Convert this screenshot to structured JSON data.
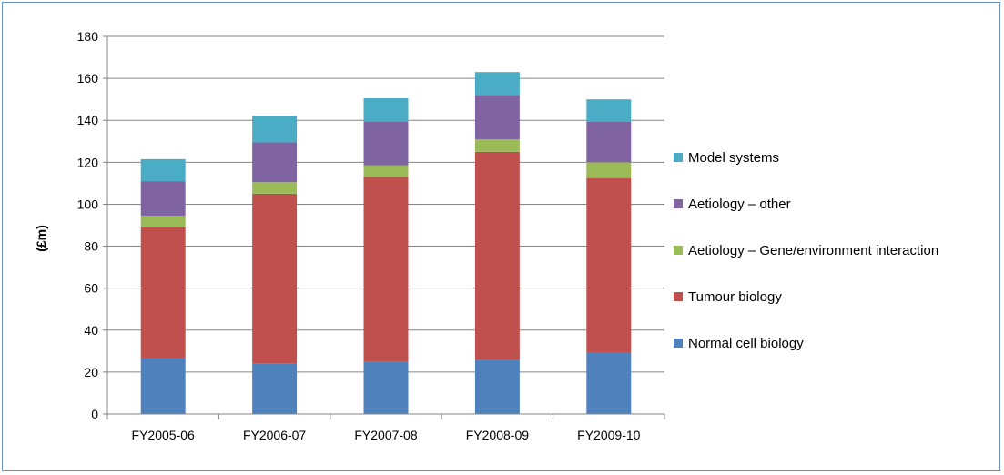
{
  "chart_data": {
    "type": "bar",
    "stacked": true,
    "categories": [
      "FY2005-06",
      "FY2006-07",
      "FY2007-08",
      "FY2008-09",
      "FY2009-10"
    ],
    "series": [
      {
        "name": "Normal cell biology",
        "color": "#4f81bd",
        "values": [
          26.5,
          24,
          25,
          26,
          29.5
        ]
      },
      {
        "name": "Tumour biology",
        "color": "#c0504d",
        "values": [
          62.5,
          81,
          88,
          99,
          83
        ]
      },
      {
        "name": "Aetiology – Gene/environment interaction",
        "color": "#9bbb59",
        "values": [
          5.5,
          5.5,
          5.5,
          6,
          7.5
        ]
      },
      {
        "name": "Aetiology – other",
        "color": "#8064a2",
        "values": [
          16.5,
          19,
          21,
          21,
          19.5
        ]
      },
      {
        "name": "Model systems",
        "color": "#4bacc6",
        "values": [
          10.5,
          12.5,
          11,
          11,
          10.5
        ]
      }
    ],
    "ylabel": "(£m)",
    "xlabel": "",
    "ylim": [
      0,
      180
    ],
    "yticks": [
      "0",
      "20",
      "40",
      "60",
      "80",
      "100",
      "120",
      "140",
      "160",
      "180"
    ],
    "grid": true,
    "legend_position": "right"
  }
}
